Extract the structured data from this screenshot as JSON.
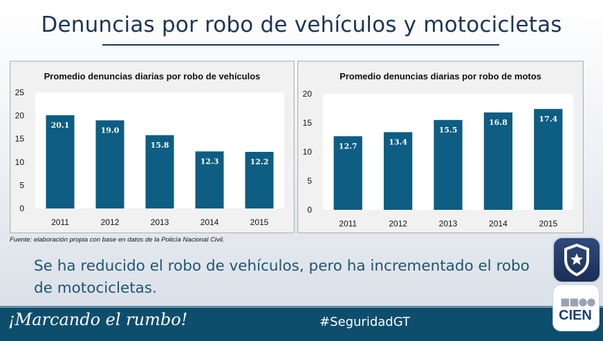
{
  "header": {
    "title": "Denuncias por robo de vehículos y motocicletas"
  },
  "chart_data": [
    {
      "type": "bar",
      "title": "Promedio denuncias diarias por robo de vehículos",
      "categories": [
        "2011",
        "2012",
        "2013",
        "2014",
        "2015"
      ],
      "values": [
        20.1,
        19.0,
        15.8,
        12.3,
        12.2
      ],
      "data_labels": [
        "20.1",
        "19.0",
        "15.8",
        "12.3",
        "12.2"
      ],
      "yticks": [
        "0",
        "5",
        "10",
        "15",
        "20",
        "25"
      ],
      "ylim": [
        0,
        25
      ],
      "xlabel": "",
      "ylabel": "",
      "bar_color": "#0e5d82"
    },
    {
      "type": "bar",
      "title": "Promedio denuncias diarias por robo de motos",
      "categories": [
        "2011",
        "2012",
        "2013",
        "2014",
        "2015"
      ],
      "values": [
        12.7,
        13.4,
        15.5,
        16.8,
        17.4
      ],
      "data_labels": [
        "12.7",
        "13.4",
        "15.5",
        "16.8",
        "17.4"
      ],
      "yticks": [
        "0",
        "5",
        "10",
        "15",
        "20"
      ],
      "ylim": [
        0,
        20
      ],
      "xlabel": "",
      "ylabel": "",
      "bar_color": "#0e5d82"
    }
  ],
  "source": "Fuente: elaboración propia con base en datos de la Policía Nacional Civil.",
  "summary": "Se ha reducido el robo de vehículos, pero ha incrementado el robo de motocicletas.",
  "footer": {
    "slogan": "¡Marcando el rumbo!",
    "hashtag": "#SeguridadGT"
  },
  "logos": {
    "shield_icon": "star-shield-icon",
    "cien_text": "CIEN",
    "cien_dots": "■■●●"
  },
  "colors": {
    "title": "#1c3554",
    "footer_bg": "#0e4e6d",
    "summary_text": "#1f5478"
  }
}
